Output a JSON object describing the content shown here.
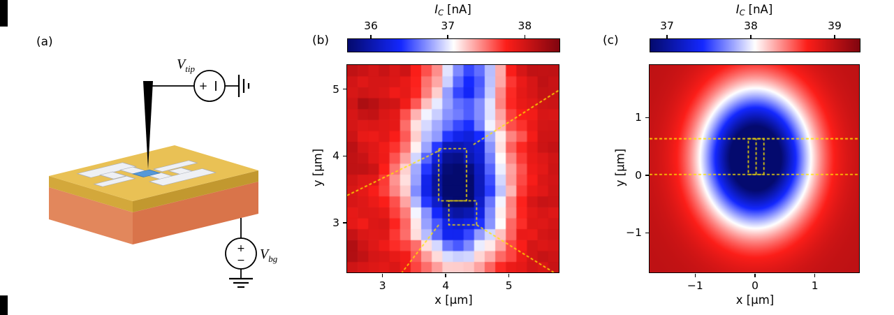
{
  "figure": {
    "panel_labels": {
      "a": "(a)",
      "b": "(b)",
      "c": "(c)"
    },
    "schematic": {
      "tip_source": {
        "symbol": "V",
        "subscript": "tip",
        "plus": "+"
      },
      "backgate_source": {
        "symbol": "V",
        "subscript": "bg",
        "plus": "+",
        "minus": "−"
      },
      "colors": {
        "gold_layer": "#e9c155",
        "substrate": "#d9744a",
        "junction": "#5598d8",
        "electrodes": "#eef0f4",
        "tip": "#000000"
      }
    }
  },
  "chart_data": [
    {
      "id": "b",
      "type": "heatmap",
      "style": "pixelated",
      "colorbar": {
        "title": {
          "symbol": "I",
          "subscript": "C",
          "unit": "[nA]"
        },
        "range": [
          35.7,
          38.45
        ],
        "ticks": {
          "values": [
            36,
            37,
            38
          ],
          "labels": [
            "36",
            "37",
            "38"
          ]
        }
      },
      "xlabel": "x [μm]",
      "ylabel": "y [μm]",
      "x_range": [
        2.45,
        5.8
      ],
      "y_range": [
        2.25,
        5.35
      ],
      "x_ticks": {
        "values": [
          3,
          4,
          5
        ],
        "labels": [
          "3",
          "4",
          "5"
        ]
      },
      "y_ticks": {
        "values": [
          3,
          4,
          5
        ],
        "labels": [
          "3",
          "4",
          "5"
        ]
      },
      "grid": [
        20,
        19
      ],
      "field": {
        "base": 38.05,
        "noise": 0.55,
        "wells": [
          {
            "x": 4.18,
            "y": 3.55,
            "sx": 0.78,
            "sy": 1.15,
            "depth": 2.5
          },
          {
            "x": 4.4,
            "y": 5.35,
            "sx": 0.5,
            "sy": 0.8,
            "depth": 1.3
          }
        ]
      },
      "approx_values": {
        "background_nA": 38.0,
        "dip_min_nA": 35.8,
        "dip_center_um": [
          4.2,
          3.6
        ]
      },
      "colormap": [
        [
          0,
          [
            4,
            10,
            110
          ]
        ],
        [
          0.25,
          [
            20,
            40,
            255
          ]
        ],
        [
          0.5,
          [
            255,
            255,
            255
          ]
        ],
        [
          0.75,
          [
            252,
            30,
            25
          ]
        ],
        [
          1,
          [
            130,
            5,
            15
          ]
        ]
      ],
      "overlay_color": "#ffe600",
      "overlays": [
        {
          "type": "line",
          "points": [
            [
              2.45,
              3.4
            ],
            [
              3.93,
              4.08
            ]
          ]
        },
        {
          "type": "line",
          "points": [
            [
              4.45,
              4.16
            ],
            [
              5.8,
              4.97
            ]
          ]
        },
        {
          "type": "rect",
          "x0": 3.9,
          "y0": 3.32,
          "x1": 4.34,
          "y1": 4.1
        },
        {
          "type": "rect",
          "x0": 4.06,
          "y0": 2.96,
          "x1": 4.5,
          "y1": 3.32
        },
        {
          "type": "line",
          "points": [
            [
              4.5,
              2.96
            ],
            [
              5.72,
              2.25
            ]
          ]
        },
        {
          "type": "line",
          "points": [
            [
              3.9,
              2.96
            ],
            [
              3.32,
              2.25
            ]
          ]
        }
      ]
    },
    {
      "id": "c",
      "type": "heatmap",
      "style": "smooth",
      "colorbar": {
        "title": {
          "symbol": "I",
          "subscript": "C",
          "unit": "[nA]"
        },
        "range": [
          36.8,
          39.3
        ],
        "ticks": {
          "values": [
            37,
            38,
            39
          ],
          "labels": [
            "37",
            "38",
            "39"
          ]
        }
      },
      "xlabel": "x [μm]",
      "ylabel": "y [μm]",
      "x_range": [
        -1.75,
        1.75
      ],
      "y_range": [
        -1.7,
        1.9
      ],
      "x_ticks": {
        "values": [
          -1,
          0,
          1
        ],
        "labels": [
          "−1",
          "0",
          "1"
        ]
      },
      "y_ticks": {
        "values": [
          -1,
          0,
          1
        ],
        "labels": [
          "−1",
          "0",
          "1"
        ]
      },
      "field": {
        "base": 39.0,
        "noise": 0,
        "wells": [
          {
            "x": 0.02,
            "y": 0.28,
            "sx": 0.9,
            "sy": 1.18,
            "depth": 2.75
          }
        ]
      },
      "approx_values": {
        "background_nA": 39.0,
        "dip_min_nA": 36.9,
        "dip_center_um": [
          0,
          0.3
        ]
      },
      "colormap": [
        [
          0,
          [
            4,
            10,
            110
          ]
        ],
        [
          0.25,
          [
            20,
            40,
            255
          ]
        ],
        [
          0.5,
          [
            255,
            255,
            255
          ]
        ],
        [
          0.75,
          [
            252,
            30,
            25
          ]
        ],
        [
          1,
          [
            130,
            5,
            15
          ]
        ]
      ],
      "overlay_color": "#ffe600",
      "overlays": [
        {
          "type": "line",
          "points": [
            [
              -1.75,
              0
            ],
            [
              1.75,
              0
            ]
          ]
        },
        {
          "type": "line",
          "points": [
            [
              -1.75,
              0.62
            ],
            [
              1.75,
              0.62
            ]
          ]
        },
        {
          "type": "rect",
          "x0": -0.1,
          "y0": 0,
          "x1": 0.16,
          "y1": 0.62
        },
        {
          "type": "line",
          "points": [
            [
              0.03,
              0
            ],
            [
              0.03,
              0.62
            ]
          ]
        }
      ]
    }
  ]
}
